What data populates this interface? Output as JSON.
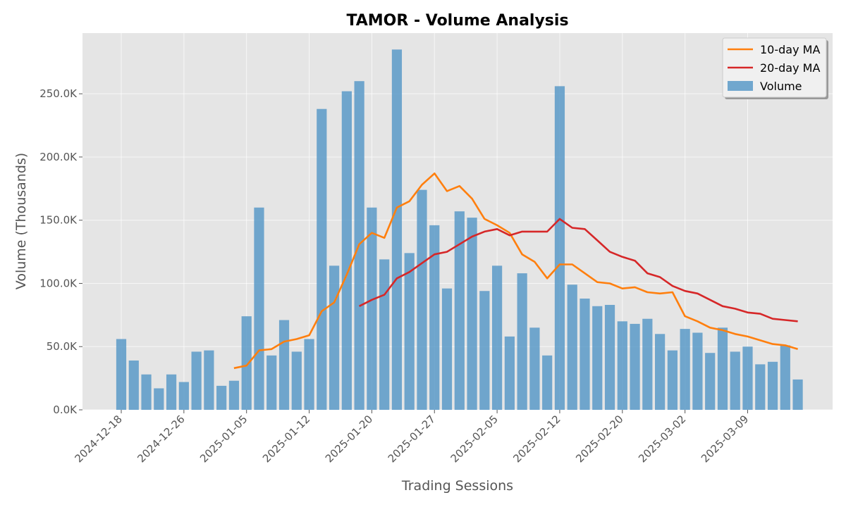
{
  "chart_data": {
    "type": "bar",
    "title": "TAMOR - Volume Analysis",
    "xlabel": "Trading Sessions",
    "ylabel": "Volume (Thousands)",
    "ylim": [
      0,
      298
    ],
    "y_ticks": [
      0,
      50,
      100,
      150,
      200,
      250
    ],
    "y_tick_labels": [
      "0.0K",
      "50.0K",
      "100.0K",
      "150.0K",
      "200.0K",
      "250.0K"
    ],
    "x_tick_labels": [
      "2024-12-18",
      "2024-12-26",
      "2025-01-05",
      "2025-01-12",
      "2025-01-20",
      "2025-01-27",
      "2025-02-05",
      "2025-02-12",
      "2025-02-20",
      "2025-03-02",
      "2025-03-09"
    ],
    "x_tick_indices": [
      0,
      5,
      10,
      15,
      20,
      25,
      30,
      35,
      40,
      45,
      50
    ],
    "grid": true,
    "legend_position": "top-right",
    "colors": {
      "volume": "#5b9ac8",
      "ma10": "#ff7f0e",
      "ma20": "#d62728",
      "plot_bg": "#e5e5e5",
      "grid": "#ffffff"
    },
    "series": [
      {
        "name": "Volume",
        "type": "bar",
        "values": [
          56,
          39,
          28,
          17,
          28,
          22,
          46,
          47,
          19,
          23,
          74,
          160,
          43,
          71,
          46,
          56,
          238,
          114,
          252,
          260,
          160,
          119,
          285,
          124,
          174,
          146,
          96,
          157,
          152,
          94,
          114,
          58,
          108,
          65,
          43,
          256,
          99,
          88,
          82,
          83,
          70,
          68,
          72,
          60,
          47,
          64,
          61,
          45,
          65,
          46,
          50,
          36,
          38,
          51,
          24
        ]
      },
      {
        "name": "10-day MA",
        "type": "line",
        "start_index": 9,
        "values": [
          33,
          35,
          47,
          48,
          54,
          56,
          59,
          78,
          85,
          107,
          131,
          140,
          136,
          160,
          165,
          178,
          187,
          173,
          177,
          167,
          151,
          146,
          140,
          123,
          117,
          104,
          115,
          115,
          108,
          101,
          100,
          96,
          97,
          93,
          92,
          93,
          74,
          70,
          65,
          63,
          60,
          58,
          55,
          52,
          51,
          48
        ]
      },
      {
        "name": "20-day MA",
        "type": "line",
        "start_index": 19,
        "values": [
          82,
          87,
          91,
          104,
          109,
          116,
          123,
          125,
          131,
          137,
          141,
          143,
          138,
          141,
          141,
          141,
          151,
          144,
          143,
          134,
          125,
          121,
          118,
          108,
          105,
          98,
          94,
          92,
          87,
          82,
          80,
          77,
          76,
          72,
          71,
          70
        ]
      }
    ],
    "legend": [
      {
        "label": "10-day MA",
        "kind": "line",
        "color": "#ff7f0e"
      },
      {
        "label": "20-day MA",
        "kind": "line",
        "color": "#d62728"
      },
      {
        "label": "Volume",
        "kind": "bar",
        "color": "#5b9ac8"
      }
    ]
  }
}
